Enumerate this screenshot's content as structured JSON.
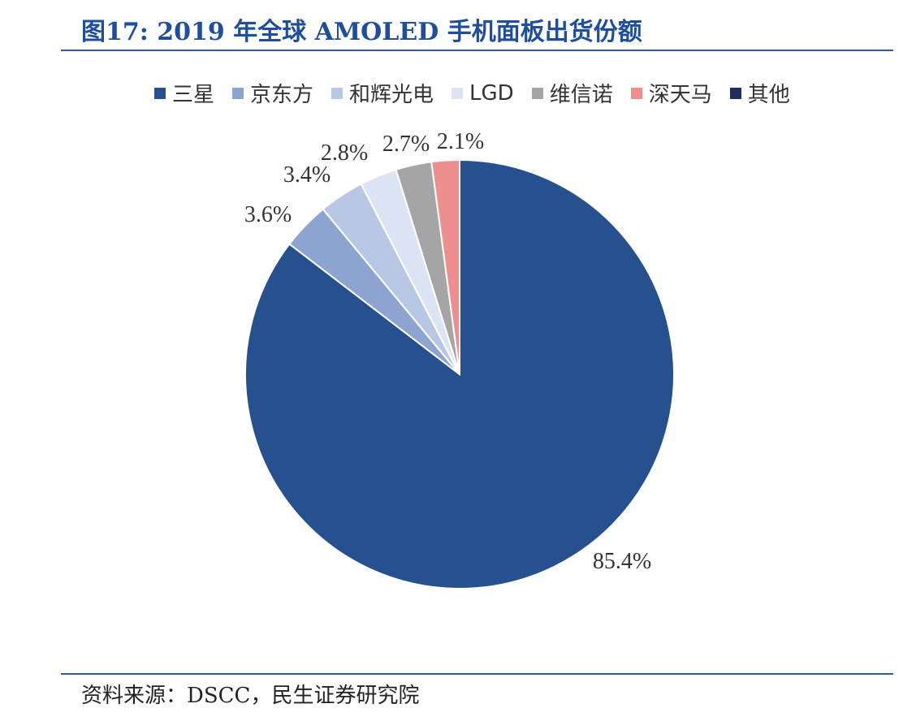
{
  "header": {
    "title": "图17: 2019 年全球 AMOLED 手机面板出货份额"
  },
  "chart_data": {
    "type": "pie",
    "title": "图17: 2019 年全球 AMOLED 手机面板出货份额",
    "legend_position": "top",
    "slices": [
      {
        "name": "三星",
        "value": 85.4,
        "label": "85.4%",
        "color": "#27508f"
      },
      {
        "name": "京东方",
        "value": 3.6,
        "label": "3.6%",
        "color": "#8ca4cf"
      },
      {
        "name": "和辉光电",
        "value": 3.4,
        "label": "3.4%",
        "color": "#b8c7e4"
      },
      {
        "name": "LGD",
        "value": 2.8,
        "label": "2.8%",
        "color": "#dce3f2"
      },
      {
        "name": "维信诺",
        "value": 2.7,
        "label": "2.7%",
        "color": "#a5a5a5"
      },
      {
        "name": "深天马",
        "value": 2.1,
        "label": "2.1%",
        "color": "#ee8f8f"
      },
      {
        "name": "其他",
        "value": 0,
        "label": "",
        "color": "#1c2f5e"
      }
    ]
  },
  "footer": {
    "source": "资料来源：DSCC，民生证券研究院"
  }
}
